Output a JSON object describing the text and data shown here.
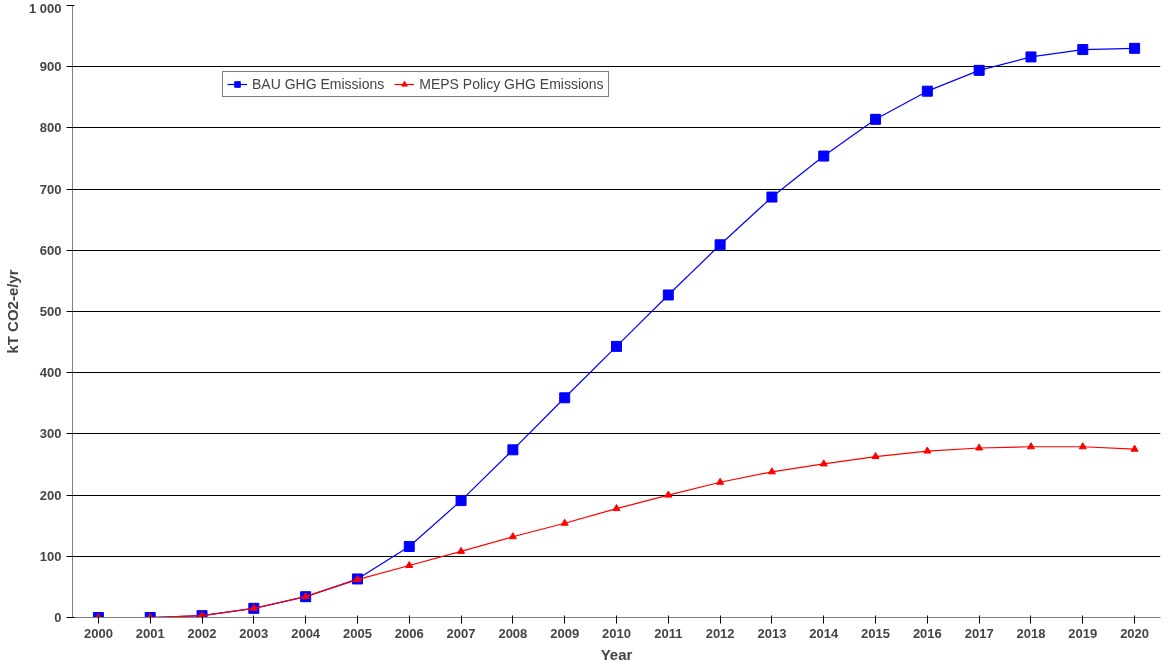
{
  "chart_data": {
    "type": "line",
    "xlabel": "Year",
    "ylabel": "kT CO2-e/yr",
    "categories": [
      "2000",
      "2001",
      "2002",
      "2003",
      "2004",
      "2005",
      "2006",
      "2007",
      "2008",
      "2009",
      "2010",
      "2011",
      "2012",
      "2013",
      "2014",
      "2015",
      "2016",
      "2017",
      "2018",
      "2019",
      "2020"
    ],
    "series": [
      {
        "name": "BAU GHG Emissions",
        "color": "#0000ff",
        "marker": "square",
        "values": [
          0,
          0,
          3,
          15,
          34,
          63,
          116,
          191,
          274,
          359,
          443,
          527,
          609,
          687,
          754,
          814,
          860,
          894,
          916,
          928,
          930
        ]
      },
      {
        "name": "MEPS Policy GHG Emissions",
        "color": "#ff0000",
        "marker": "triangle",
        "values": [
          0,
          0,
          3,
          15,
          34,
          62,
          85,
          108,
          132,
          154,
          178,
          200,
          221,
          238,
          251,
          263,
          272,
          277,
          279,
          279,
          275
        ]
      }
    ],
    "ylim": [
      0,
      1000
    ],
    "yticks": [
      0,
      100,
      200,
      300,
      400,
      500,
      600,
      700,
      800,
      900,
      {
        "value": 1000,
        "label": "1 000"
      }
    ],
    "grid": "y",
    "legend": "top left",
    "line_style": "solid"
  }
}
